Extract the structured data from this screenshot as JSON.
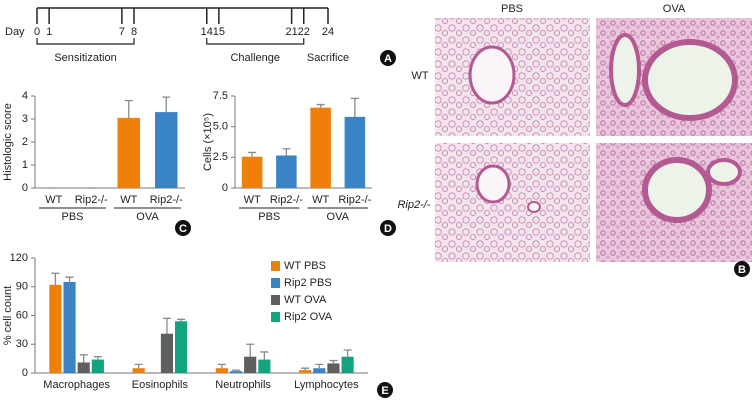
{
  "timeline": {
    "prefix": "Day",
    "days": [
      0,
      1,
      7,
      8,
      14,
      15,
      21,
      22,
      24
    ],
    "phases": [
      {
        "label": "Sensitization",
        "from": 0,
        "to": 8
      },
      {
        "label": "Challenge",
        "from": 14,
        "to": 22
      },
      {
        "label": "Sacrifice",
        "from": 24,
        "to": 24
      }
    ]
  },
  "histology": {
    "columns": [
      "PBS",
      "OVA"
    ],
    "rows": [
      "WT",
      "Rip2-/-"
    ]
  },
  "panel_labels": [
    "A",
    "B",
    "C",
    "D",
    "E"
  ],
  "chart_data": [
    {
      "type": "bar",
      "y_label": "Histologic score",
      "categories": [
        "WT",
        "Rip2-/-",
        "WT",
        "Rip2-/-"
      ],
      "group_labels": [
        "PBS",
        "OVA"
      ],
      "values": [
        0,
        0,
        3.05,
        3.3
      ],
      "errors": [
        0,
        0,
        0.75,
        0.65
      ],
      "colors": [
        "#f07f09",
        "#3a84c6",
        "#f07f09",
        "#3a84c6"
      ],
      "ylim": [
        0,
        4
      ],
      "yticks": [
        0,
        1,
        2,
        3,
        4
      ]
    },
    {
      "type": "bar",
      "y_label": "Cells (×10⁵)",
      "categories": [
        "WT",
        "Rip2-/-",
        "WT",
        "Rip2-/-"
      ],
      "group_labels": [
        "PBS",
        "OVA"
      ],
      "values": [
        2.55,
        2.65,
        6.55,
        5.8
      ],
      "errors": [
        0.35,
        0.55,
        0.25,
        1.5
      ],
      "colors": [
        "#f07f09",
        "#3a84c6",
        "#f07f09",
        "#3a84c6"
      ],
      "ylim": [
        0,
        7.5
      ],
      "yticks": [
        0,
        2.5,
        {
          "value": 5,
          "label": "5.0"
        },
        7.5
      ]
    },
    {
      "type": "grouped-bar",
      "y_label": "% cell count",
      "categories": [
        "Macrophages",
        "Eosinophils",
        "Neutrophils",
        "Lymphocytes"
      ],
      "series": [
        {
          "name": "WT PBS",
          "color": "#f07f09",
          "values": [
            92,
            5,
            5,
            3
          ],
          "errors": [
            12,
            4,
            4,
            2
          ]
        },
        {
          "name": "Rip2 PBS",
          "color": "#3a84c6",
          "values": [
            95,
            0,
            2,
            5
          ],
          "errors": [
            5,
            0,
            1,
            4
          ]
        },
        {
          "name": "WT OVA",
          "color": "#5f5f5f",
          "values": [
            11,
            41,
            17,
            10
          ],
          "errors": [
            8,
            16,
            13,
            3
          ]
        },
        {
          "name": "Rip2 OVA",
          "color": "#14a37f",
          "values": [
            14,
            54,
            14,
            17
          ],
          "errors": [
            3,
            2,
            8,
            7
          ]
        }
      ],
      "ylim": [
        0,
        120
      ],
      "yticks": [
        0,
        30,
        60,
        90,
        120
      ],
      "legend": "top-right"
    }
  ]
}
